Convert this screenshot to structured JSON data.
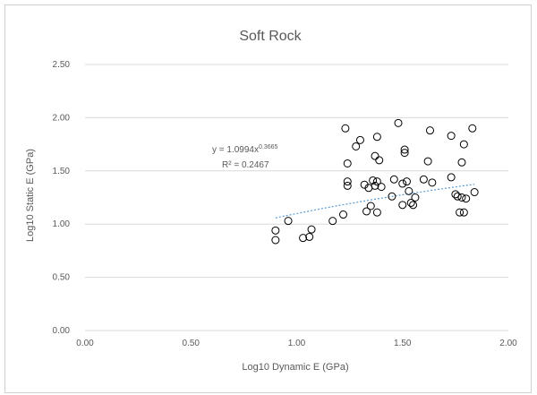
{
  "chart_data": {
    "type": "scatter",
    "title": "Soft Rock",
    "xlabel": "Log10 Dynamic E (GPa)",
    "ylabel": "Log10 Static E (GPa)",
    "xlim": [
      0,
      2
    ],
    "ylim": [
      0,
      2.5
    ],
    "x_ticks": [
      "0.00",
      "0.50",
      "1.00",
      "1.50",
      "2.00"
    ],
    "y_ticks": [
      "0.00",
      "0.50",
      "1.00",
      "1.50",
      "2.00",
      "2.50"
    ],
    "grid": "horizontal",
    "marker": "open-circle",
    "colors": {
      "marker": "#000000",
      "trendline": "#5b9bd5",
      "grid": "#d9d9d9",
      "text": "#595959"
    },
    "trendline": {
      "type": "power",
      "a": 1.0994,
      "b": 0.3665,
      "x_range": [
        0.9,
        1.84
      ],
      "equation_text": "y = 1.0994x",
      "equation_exponent": "0.3665",
      "r2_text": "R² = 0.2467"
    },
    "points": [
      [
        0.9,
        0.94
      ],
      [
        0.9,
        0.85
      ],
      [
        0.96,
        1.03
      ],
      [
        1.03,
        0.87
      ],
      [
        1.06,
        0.88
      ],
      [
        1.07,
        0.95
      ],
      [
        1.17,
        1.03
      ],
      [
        1.22,
        1.09
      ],
      [
        1.23,
        1.9
      ],
      [
        1.24,
        1.57
      ],
      [
        1.24,
        1.4
      ],
      [
        1.24,
        1.36
      ],
      [
        1.28,
        1.73
      ],
      [
        1.3,
        1.79
      ],
      [
        1.32,
        1.37
      ],
      [
        1.33,
        1.12
      ],
      [
        1.34,
        1.34
      ],
      [
        1.35,
        1.17
      ],
      [
        1.36,
        1.41
      ],
      [
        1.37,
        1.36
      ],
      [
        1.37,
        1.64
      ],
      [
        1.38,
        1.11
      ],
      [
        1.38,
        1.82
      ],
      [
        1.38,
        1.4
      ],
      [
        1.39,
        1.6
      ],
      [
        1.4,
        1.35
      ],
      [
        1.45,
        1.26
      ],
      [
        1.46,
        1.42
      ],
      [
        1.48,
        1.95
      ],
      [
        1.5,
        1.38
      ],
      [
        1.5,
        1.18
      ],
      [
        1.51,
        1.7
      ],
      [
        1.51,
        1.67
      ],
      [
        1.52,
        1.4
      ],
      [
        1.53,
        1.31
      ],
      [
        1.54,
        1.2
      ],
      [
        1.55,
        1.18
      ],
      [
        1.56,
        1.25
      ],
      [
        1.6,
        1.42
      ],
      [
        1.62,
        1.59
      ],
      [
        1.63,
        1.88
      ],
      [
        1.64,
        1.39
      ],
      [
        1.73,
        1.83
      ],
      [
        1.73,
        1.44
      ],
      [
        1.75,
        1.28
      ],
      [
        1.76,
        1.26
      ],
      [
        1.77,
        1.11
      ],
      [
        1.78,
        1.58
      ],
      [
        1.78,
        1.25
      ],
      [
        1.79,
        1.11
      ],
      [
        1.79,
        1.75
      ],
      [
        1.8,
        1.24
      ],
      [
        1.83,
        1.9
      ],
      [
        1.84,
        1.3
      ]
    ]
  }
}
